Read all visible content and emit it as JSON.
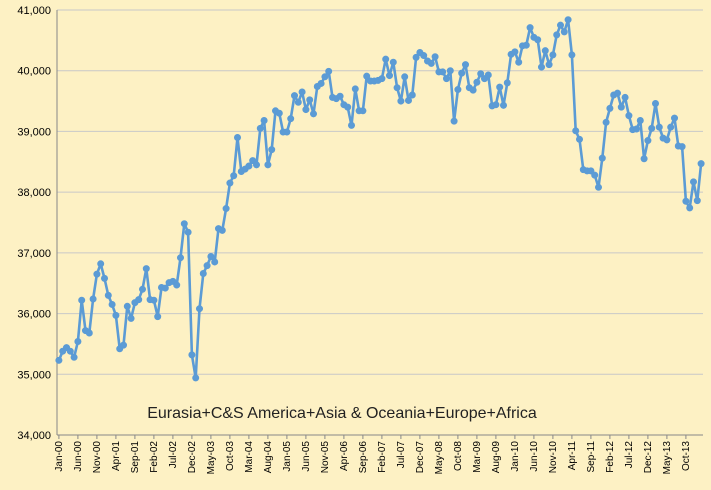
{
  "chart_data": {
    "type": "line",
    "title": "Eurasia+C&S America+Asia & Oceania+Europe+Africa",
    "xlabel": "",
    "ylabel": "",
    "ylim": [
      34000,
      41000
    ],
    "y_ticks": [
      34000,
      35000,
      36000,
      37000,
      38000,
      39000,
      40000,
      41000
    ],
    "y_tick_labels": [
      "34,000",
      "35,000",
      "36,000",
      "37,000",
      "38,000",
      "39,000",
      "40,000",
      "41,000"
    ],
    "x_tick_labels": [
      "Jan-00",
      "Jun-00",
      "Nov-00",
      "Apr-01",
      "Sep-01",
      "Feb-02",
      "Jul-02",
      "Dec-02",
      "May-03",
      "Oct-03",
      "Mar-04",
      "Aug-04",
      "Jan-05",
      "Jun-05",
      "Nov-05",
      "Apr-06",
      "Sep-06",
      "Feb-07",
      "Jul-07",
      "Dec-07",
      "May-08",
      "Oct-08",
      "Mar-09",
      "Aug-09",
      "Jan-10",
      "Jun-10",
      "Nov-10",
      "Apr-11",
      "Sep-11",
      "Feb-12",
      "Jul-12",
      "Dec-12",
      "May-13",
      "Oct-13"
    ],
    "x_tick_every_months": 5,
    "grid": "horizontal",
    "legend": "none",
    "series_color": "#5b9bd5",
    "series": [
      {
        "start": "Jan-00",
        "frequency": "monthly",
        "values": [
          35230,
          35380,
          35440,
          35380,
          35280,
          35540,
          36220,
          35720,
          35680,
          36240,
          36650,
          36820,
          36580,
          36300,
          36150,
          35970,
          35420,
          35480,
          36120,
          35920,
          36180,
          36230,
          36400,
          36740,
          36230,
          36220,
          35950,
          36430,
          36420,
          36510,
          36530,
          36470,
          36920,
          37480,
          37340,
          35320,
          34940,
          36080,
          36660,
          36790,
          36940,
          36850,
          37400,
          37370,
          37730,
          38150,
          38270,
          38900,
          38340,
          38380,
          38430,
          38520,
          38450,
          39050,
          39180,
          38450,
          38700,
          39340,
          39300,
          38990,
          38990,
          39210,
          39590,
          39480,
          39650,
          39360,
          39520,
          39290,
          39740,
          39790,
          39900,
          39990,
          39560,
          39540,
          39580,
          39440,
          39400,
          39100,
          39700,
          39340,
          39340,
          39910,
          39830,
          39830,
          39840,
          39870,
          40190,
          39920,
          40140,
          39720,
          39500,
          39900,
          39510,
          39600,
          40220,
          40300,
          40250,
          40160,
          40120,
          40230,
          39980,
          39980,
          39870,
          40000,
          39170,
          39690,
          39960,
          40100,
          39720,
          39680,
          39810,
          39950,
          39870,
          39930,
          39420,
          39440,
          39730,
          39430,
          39800,
          40270,
          40310,
          40140,
          40410,
          40420,
          40710,
          40550,
          40510,
          40060,
          40330,
          40100,
          40260,
          40590,
          40750,
          40640,
          40840,
          40260,
          39010,
          38870,
          38370,
          38350,
          38350,
          38280,
          38080,
          38560,
          39150,
          39380,
          39600,
          39630,
          39400,
          39560,
          39260,
          39030,
          39040,
          39180,
          38550,
          38850,
          39050,
          39460,
          39070,
          38890,
          38860,
          39070,
          39220,
          38760,
          38750,
          37850,
          37740,
          38170,
          37860,
          38470
        ]
      }
    ]
  }
}
